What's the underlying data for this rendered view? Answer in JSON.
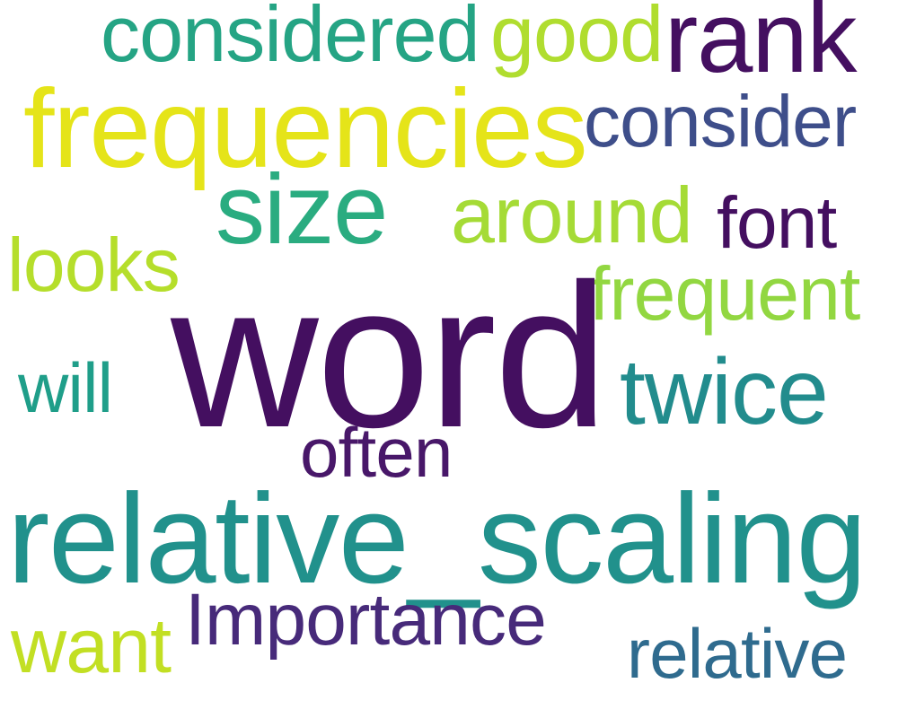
{
  "words": {
    "word": {
      "text": "word",
      "color": "#440f60"
    },
    "relative_scaling": {
      "text": "relative_scaling",
      "color": "#21918c"
    },
    "frequencies": {
      "text": "frequencies",
      "color": "#e5e419"
    },
    "rank": {
      "text": "rank",
      "color": "#440f60"
    },
    "size": {
      "text": "size",
      "color": "#2aac80"
    },
    "twice": {
      "text": "twice",
      "color": "#228c8d"
    },
    "considered": {
      "text": "considered",
      "color": "#25a484"
    },
    "good": {
      "text": "good",
      "color": "#b0dd2f"
    },
    "consider": {
      "text": "consider",
      "color": "#3e4e8a"
    },
    "frequent": {
      "text": "frequent",
      "color": "#92d741"
    },
    "around": {
      "text": "around",
      "color": "#a5db36"
    },
    "importance": {
      "text": "Importance",
      "color": "#472a7a"
    },
    "relative": {
      "text": "relative",
      "color": "#2f6b8e"
    },
    "font": {
      "text": "font",
      "color": "#440f60"
    },
    "looks": {
      "text": "looks",
      "color": "#b5de2b"
    },
    "often": {
      "text": "often",
      "color": "#481769"
    },
    "want": {
      "text": "want",
      "color": "#c2df23"
    },
    "will": {
      "text": "will",
      "color": "#1f9e89"
    }
  }
}
